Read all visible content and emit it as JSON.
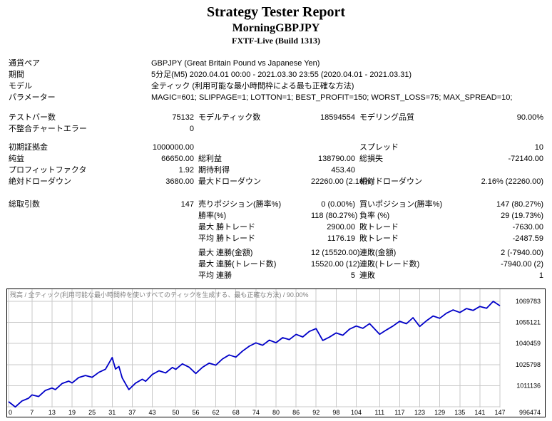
{
  "header": {
    "title": "Strategy Tester Report",
    "subtitle": "MorningGBPJPY",
    "server": "FXTF-Live (Build 1313)"
  },
  "report_table": {
    "rows": [
      {
        "type": "wide",
        "label": "通貨ペア",
        "value": "GBPJPY (Great Britain Pound vs Japanese Yen)"
      },
      {
        "type": "wide",
        "label": "期間",
        "value": "5分足(M5) 2020.04.01 00:00 - 2021.03.30 23:55 (2020.04.01 - 2021.03.31)"
      },
      {
        "type": "wide",
        "label": "モデル",
        "value": "全ティック (利用可能な最小時間枠による最も正確な方法)"
      },
      {
        "type": "wide",
        "label": "パラメーター",
        "value": "MAGIC=601; SLIPPAGE=1; LOTTON=1; BEST_PROFIT=150; WORST_LOSS=75; MAX_SPREAD=10;"
      },
      {
        "type": "gap",
        "h": 12
      },
      {
        "type": "stats",
        "cells": [
          "テストバー数",
          "75132",
          "モデルティック数",
          "18594554",
          "モデリング品質",
          "90.00%"
        ]
      },
      {
        "type": "stats",
        "cells": [
          "不整合チャートエラー",
          "0",
          "",
          "",
          "",
          ""
        ]
      },
      {
        "type": "gap",
        "h": 10
      },
      {
        "type": "stats",
        "cells": [
          "初期証拠金",
          "1000000.00",
          "",
          "",
          "スプレッド",
          "10"
        ]
      },
      {
        "type": "stats",
        "cells": [
          "純益",
          "66650.00",
          "総利益",
          "138790.00",
          "総損失",
          "-72140.00"
        ]
      },
      {
        "type": "stats",
        "cells": [
          "プロフィットファクタ",
          "1.92",
          "期待利得",
          "453.40",
          "",
          ""
        ]
      },
      {
        "type": "stats",
        "cells": [
          "絶対ドローダウン",
          "3680.00",
          "最大ドローダウン",
          "22260.00 (2.16%)",
          "相対ドローダウン",
          "2.16% (22260.00)"
        ]
      },
      {
        "type": "gap",
        "h": 16
      },
      {
        "type": "stats",
        "indent": true,
        "cells": [
          "総取引数",
          "147",
          "売りポジション(勝率%)",
          "0 (0.00%)",
          "買いポジション(勝率%)",
          "147 (80.27%)"
        ]
      },
      {
        "type": "stats",
        "indent": true,
        "cells": [
          "",
          "",
          "勝率(%)",
          "118 (80.27%)",
          "負率 (%)",
          "29 (19.73%)"
        ]
      },
      {
        "type": "stats",
        "indent": true,
        "cells": [
          "",
          "",
          "最大 勝トレード",
          "2900.00",
          "敗トレード",
          "-7630.00"
        ]
      },
      {
        "type": "stats",
        "indent": true,
        "cells": [
          "",
          "",
          "平均 勝トレード",
          "1176.19",
          "敗トレード",
          "-2487.59"
        ]
      },
      {
        "type": "gap",
        "h": 4
      },
      {
        "type": "stats",
        "indent": true,
        "cells": [
          "",
          "",
          "最大 連勝(金額)",
          "12 (15520.00)",
          "連敗(金額)",
          "2 (-7940.00)"
        ]
      },
      {
        "type": "stats",
        "indent": true,
        "cells": [
          "",
          "",
          "最大 連勝(トレード数)",
          "15520.00 (12)",
          "連敗(トレード数)",
          "-7940.00 (2)"
        ]
      },
      {
        "type": "stats",
        "indent": true,
        "cells": [
          "",
          "",
          "平均 連勝",
          "5",
          "連敗",
          "1"
        ]
      }
    ]
  },
  "chart_data": {
    "type": "line",
    "title": "残高 / 全ティック(利用可能な最小時間枠を使いすべてのティックを生成する、最も正確な方法) / 90.00%",
    "xlabel": "",
    "ylabel": "",
    "xlim": [
      0,
      147
    ],
    "ylim": [
      996474,
      1069783
    ],
    "grid": true,
    "legend_position": "none",
    "line_color": "#0000C8",
    "grid_color": "#C9C9C9",
    "caption_color": "#808080",
    "x_ticks": [
      0,
      7,
      13,
      19,
      25,
      31,
      37,
      43,
      50,
      56,
      62,
      68,
      74,
      80,
      86,
      92,
      98,
      104,
      111,
      117,
      123,
      129,
      135,
      141,
      147
    ],
    "y_ticks": [
      996474,
      1011136,
      1025798,
      1040459,
      1055121,
      1069783
    ],
    "series": [
      {
        "name": "残高",
        "points": [
          [
            0,
            1000000
          ],
          [
            1,
            998200
          ],
          [
            2,
            996320
          ],
          [
            4,
            1000500
          ],
          [
            6,
            1002400
          ],
          [
            7,
            1004700
          ],
          [
            9,
            1003600
          ],
          [
            11,
            1007800
          ],
          [
            13,
            1009500
          ],
          [
            14,
            1008400
          ],
          [
            16,
            1012600
          ],
          [
            18,
            1014300
          ],
          [
            19,
            1013000
          ],
          [
            21,
            1016800
          ],
          [
            23,
            1018200
          ],
          [
            25,
            1017000
          ],
          [
            27,
            1020400
          ],
          [
            29,
            1022600
          ],
          [
            31,
            1030680
          ],
          [
            32,
            1022700
          ],
          [
            33,
            1024500
          ],
          [
            34,
            1016500
          ],
          [
            36,
            1008420
          ],
          [
            38,
            1012900
          ],
          [
            40,
            1015600
          ],
          [
            41,
            1014200
          ],
          [
            43,
            1018900
          ],
          [
            45,
            1021500
          ],
          [
            47,
            1020000
          ],
          [
            49,
            1023800
          ],
          [
            50,
            1022500
          ],
          [
            52,
            1026300
          ],
          [
            54,
            1024000
          ],
          [
            56,
            1019600
          ],
          [
            58,
            1023900
          ],
          [
            60,
            1026800
          ],
          [
            62,
            1025400
          ],
          [
            64,
            1029700
          ],
          [
            66,
            1032500
          ],
          [
            68,
            1031000
          ],
          [
            70,
            1035200
          ],
          [
            72,
            1038600
          ],
          [
            74,
            1040900
          ],
          [
            76,
            1039200
          ],
          [
            78,
            1042800
          ],
          [
            80,
            1041000
          ],
          [
            82,
            1044500
          ],
          [
            84,
            1043200
          ],
          [
            86,
            1046800
          ],
          [
            88,
            1045000
          ],
          [
            90,
            1048900
          ],
          [
            92,
            1050800
          ],
          [
            94,
            1042600
          ],
          [
            96,
            1044900
          ],
          [
            98,
            1047800
          ],
          [
            100,
            1046200
          ],
          [
            102,
            1050400
          ],
          [
            104,
            1052600
          ],
          [
            106,
            1051000
          ],
          [
            108,
            1054300
          ],
          [
            111,
            1046900
          ],
          [
            113,
            1049800
          ],
          [
            115,
            1052600
          ],
          [
            117,
            1055900
          ],
          [
            119,
            1054200
          ],
          [
            121,
            1058400
          ],
          [
            123,
            1052300
          ],
          [
            125,
            1056200
          ],
          [
            127,
            1059600
          ],
          [
            129,
            1058000
          ],
          [
            131,
            1061500
          ],
          [
            133,
            1063800
          ],
          [
            135,
            1062000
          ],
          [
            137,
            1064800
          ],
          [
            139,
            1063500
          ],
          [
            141,
            1066200
          ],
          [
            143,
            1065000
          ],
          [
            145,
            1069783
          ],
          [
            147,
            1066650
          ]
        ]
      }
    ]
  }
}
